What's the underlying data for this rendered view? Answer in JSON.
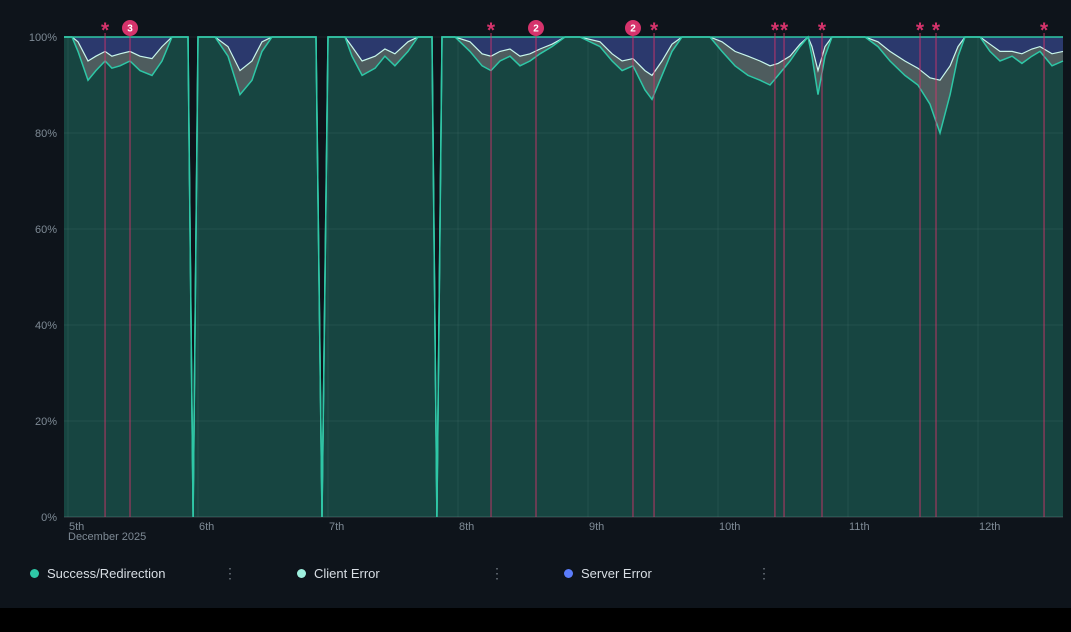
{
  "panel": {
    "background": "#0e141b",
    "footer_bar_color": "#000000"
  },
  "chart_data": {
    "type": "area",
    "stacking": "percent",
    "x_axis": {
      "sub_label": "December 2025",
      "ticks": [
        {
          "label": "5th",
          "day": 5
        },
        {
          "label": "6th",
          "day": 6
        },
        {
          "label": "7th",
          "day": 7
        },
        {
          "label": "8th",
          "day": 8
        },
        {
          "label": "9th",
          "day": 9
        },
        {
          "label": "10th",
          "day": 10
        },
        {
          "label": "11th",
          "day": 11
        },
        {
          "label": "12th",
          "day": 12
        }
      ]
    },
    "y_axis": {
      "min": 0,
      "max": 100,
      "ticks": [
        {
          "label": "0%",
          "value": 0
        },
        {
          "label": "20%",
          "value": 20
        },
        {
          "label": "40%",
          "value": 40
        },
        {
          "label": "60%",
          "value": 60
        },
        {
          "label": "80%",
          "value": 80
        },
        {
          "label": "100%",
          "value": 100
        }
      ]
    },
    "series_names": [
      "Success/Redirection",
      "Client Error",
      "Server Error"
    ],
    "points_format": [
      "day_of_december_2025",
      "success_redirection_pct",
      "client_error_pct",
      "server_error_pct"
    ],
    "points": [
      [
        4.969,
        100,
        0,
        0
      ],
      [
        5.031,
        100,
        0,
        0
      ],
      [
        5.077,
        97,
        2,
        1
      ],
      [
        5.154,
        91,
        4,
        5
      ],
      [
        5.215,
        93,
        3,
        4
      ],
      [
        5.285,
        95,
        2,
        3
      ],
      [
        5.338,
        93.5,
        2.5,
        4
      ],
      [
        5.4,
        94,
        2.5,
        3.5
      ],
      [
        5.477,
        95,
        2,
        3
      ],
      [
        5.554,
        93,
        3,
        4
      ],
      [
        5.646,
        92,
        3.5,
        4.5
      ],
      [
        5.723,
        95,
        3,
        2
      ],
      [
        5.8,
        100,
        0,
        0
      ],
      [
        5.923,
        100,
        0,
        0
      ],
      [
        5.962,
        0,
        0,
        0
      ],
      [
        6.0,
        100,
        0,
        0
      ],
      [
        6.131,
        100,
        0,
        0
      ],
      [
        6.231,
        96,
        2,
        2
      ],
      [
        6.323,
        88,
        5,
        7
      ],
      [
        6.415,
        91,
        4,
        5
      ],
      [
        6.492,
        97,
        2,
        1
      ],
      [
        6.569,
        100,
        0,
        0
      ],
      [
        6.908,
        100,
        0,
        0
      ],
      [
        6.954,
        0,
        0,
        0
      ],
      [
        7.0,
        100,
        0,
        0
      ],
      [
        7.131,
        100,
        0,
        0
      ],
      [
        7.185,
        96,
        2,
        2
      ],
      [
        7.262,
        92,
        3,
        5
      ],
      [
        7.362,
        93.5,
        2.5,
        4
      ],
      [
        7.438,
        96,
        1.5,
        2.5
      ],
      [
        7.515,
        94,
        2.5,
        3.5
      ],
      [
        7.615,
        97,
        2,
        1
      ],
      [
        7.692,
        100,
        0,
        0
      ],
      [
        7.8,
        100,
        0,
        0
      ],
      [
        7.838,
        0,
        0,
        0
      ],
      [
        7.877,
        100,
        0,
        0
      ],
      [
        7.977,
        100,
        0,
        0
      ],
      [
        8.092,
        97,
        2,
        1
      ],
      [
        8.185,
        94,
        2.5,
        3.5
      ],
      [
        8.254,
        93,
        3,
        4
      ],
      [
        8.323,
        95,
        2,
        3
      ],
      [
        8.4,
        96,
        1.5,
        2.5
      ],
      [
        8.477,
        94,
        2,
        4
      ],
      [
        8.554,
        95,
        1.5,
        3.5
      ],
      [
        8.631,
        96.5,
        1,
        2.5
      ],
      [
        8.723,
        98,
        0.5,
        1.5
      ],
      [
        8.823,
        100,
        0,
        0
      ],
      [
        8.938,
        100,
        0,
        0
      ],
      [
        9.092,
        98,
        1,
        1
      ],
      [
        9.185,
        95,
        1.5,
        3.5
      ],
      [
        9.262,
        93,
        2,
        5
      ],
      [
        9.346,
        94,
        1.5,
        4.5
      ],
      [
        9.438,
        89,
        4,
        7
      ],
      [
        9.492,
        87,
        5,
        8
      ],
      [
        9.569,
        92,
        3,
        5
      ],
      [
        9.646,
        97,
        1.5,
        1.5
      ],
      [
        9.723,
        100,
        0,
        0
      ],
      [
        9.938,
        100,
        0,
        0
      ],
      [
        10.031,
        97,
        2,
        1
      ],
      [
        10.131,
        94,
        3,
        3
      ],
      [
        10.231,
        92,
        4,
        4
      ],
      [
        10.323,
        91,
        4,
        5
      ],
      [
        10.4,
        90,
        4,
        6
      ],
      [
        10.462,
        92,
        2.5,
        5.5
      ],
      [
        10.554,
        95,
        1,
        4
      ],
      [
        10.631,
        98,
        0.5,
        1.5
      ],
      [
        10.692,
        100,
        0,
        0
      ],
      [
        10.723,
        96,
        2,
        2
      ],
      [
        10.769,
        88,
        5,
        7
      ],
      [
        10.823,
        96,
        2,
        2
      ],
      [
        10.877,
        100,
        0,
        0
      ],
      [
        11.131,
        100,
        0,
        0
      ],
      [
        11.231,
        98,
        1,
        1
      ],
      [
        11.323,
        95,
        2,
        3
      ],
      [
        11.438,
        92,
        3,
        5
      ],
      [
        11.538,
        90,
        3.5,
        6.5
      ],
      [
        11.631,
        86,
        5.5,
        8.5
      ],
      [
        11.708,
        80,
        11,
        9
      ],
      [
        11.785,
        88,
        6,
        6
      ],
      [
        11.846,
        96,
        2,
        2
      ],
      [
        11.9,
        100,
        0,
        0
      ],
      [
        12.015,
        100,
        0,
        0
      ],
      [
        12.092,
        97,
        1.5,
        1.5
      ],
      [
        12.169,
        95,
        2,
        3
      ],
      [
        12.262,
        96,
        1,
        3
      ],
      [
        12.338,
        94.5,
        2,
        3.5
      ],
      [
        12.415,
        96,
        1.5,
        2.5
      ],
      [
        12.477,
        97,
        1,
        2
      ],
      [
        12.569,
        94,
        2.5,
        3.5
      ],
      [
        12.654,
        95,
        2,
        3
      ]
    ],
    "annotations": [
      {
        "day": 5.285,
        "marker": "star"
      },
      {
        "day": 5.477,
        "marker": "badge",
        "count": "3"
      },
      {
        "day": 8.254,
        "marker": "star"
      },
      {
        "day": 8.6,
        "marker": "badge",
        "count": "2"
      },
      {
        "day": 9.346,
        "marker": "badge",
        "count": "2"
      },
      {
        "day": 9.508,
        "marker": "star"
      },
      {
        "day": 10.438,
        "marker": "star"
      },
      {
        "day": 10.508,
        "marker": "star"
      },
      {
        "day": 10.8,
        "marker": "star"
      },
      {
        "day": 11.554,
        "marker": "star"
      },
      {
        "day": 11.677,
        "marker": "star"
      },
      {
        "day": 12.508,
        "marker": "star"
      }
    ],
    "colors": {
      "success_line": "#2ec7a6",
      "success_fill": "rgba(46,199,166,0.28)",
      "client_line": "#c9f7ec",
      "client_fill": "rgba(201,233,226,0.34)",
      "server_line": "#5b7cfa",
      "server_fill": "rgba(93,118,245,0.38)",
      "total_line": "#2ec7a6",
      "annotation": "#d6336c",
      "grid": "rgba(255,255,255,0.07)",
      "axis_text": "#7e8a95"
    }
  },
  "legend": {
    "menu_icon": "kebab-menu-icon",
    "items": [
      {
        "label": "Success/Redirection",
        "color": "#2ec7a6"
      },
      {
        "label": "Client Error",
        "color": "#9ef0de"
      },
      {
        "label": "Server Error",
        "color": "#5b7cfa"
      }
    ]
  }
}
